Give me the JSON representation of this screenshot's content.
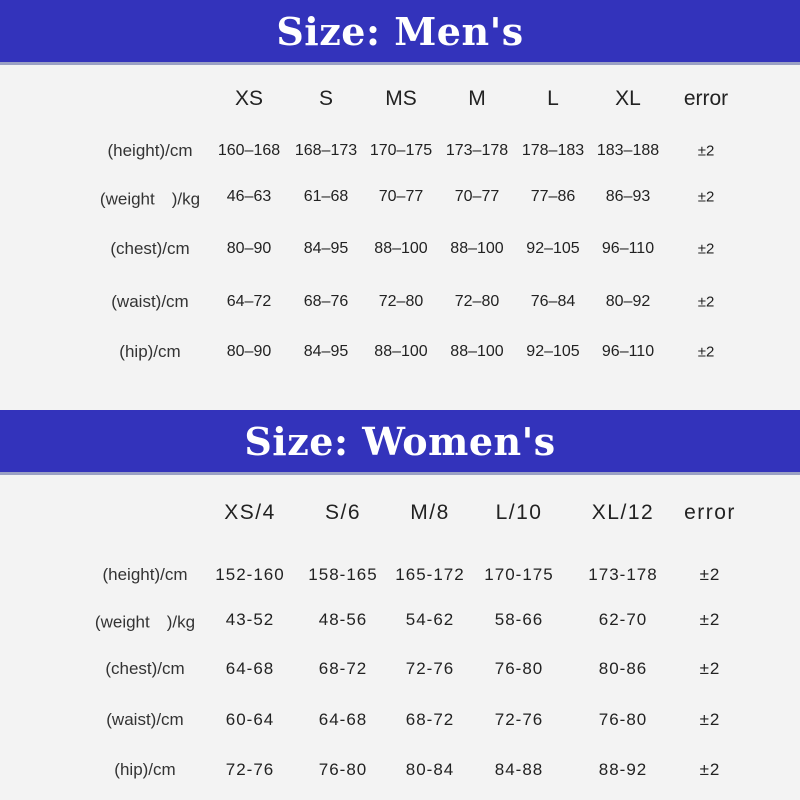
{
  "men": {
    "title": "Size: Men's",
    "headers": [
      "XS",
      "S",
      "MS",
      "M",
      "L",
      "XL",
      "error"
    ],
    "rows": [
      {
        "label": "(height)/cm",
        "values": [
          "160–168",
          "168–173",
          "170–175",
          "173–178",
          "178–183",
          "183–188",
          "±2"
        ]
      },
      {
        "label": "(weight　)/kg",
        "values": [
          "46–63",
          "61–68",
          "70–77",
          "70–77",
          "77–86",
          "86–93",
          "±2"
        ]
      },
      {
        "label": "(chest)/cm",
        "values": [
          "80–90",
          "84–95",
          "88–100",
          "88–100",
          "92–105",
          "96–110",
          "±2"
        ]
      },
      {
        "label": "(waist)/cm",
        "values": [
          "64–72",
          "68–76",
          "72–80",
          "72–80",
          "76–84",
          "80–92",
          "±2"
        ]
      },
      {
        "label": "(hip)/cm",
        "values": [
          "80–90",
          "84–95",
          "88–100",
          "88–100",
          "92–105",
          "96–110",
          "±2"
        ]
      }
    ]
  },
  "women": {
    "title": "Size: Women's",
    "headers": [
      "XS/4",
      "S/6",
      "M/8",
      "L/10",
      "XL/12",
      "error"
    ],
    "rows": [
      {
        "label": "(height)/cm",
        "values": [
          "152-160",
          "158-165",
          "165-172",
          "170-175",
          "173-178",
          "±2"
        ]
      },
      {
        "label": "(weight　)/kg",
        "values": [
          "43-52",
          "48-56",
          "54-62",
          "58-66",
          "62-70",
          "±2"
        ]
      },
      {
        "label": "(chest)/cm",
        "values": [
          "64-68",
          "68-72",
          "72-76",
          "76-80",
          "80-86",
          "±2"
        ]
      },
      {
        "label": "(waist)/cm",
        "values": [
          "60-64",
          "64-68",
          "68-72",
          "72-76",
          "76-80",
          "±2"
        ]
      },
      {
        "label": "(hip)/cm",
        "values": [
          "72-76",
          "76-80",
          "80-84",
          "84-88",
          "88-92",
          "±2"
        ]
      }
    ]
  }
}
